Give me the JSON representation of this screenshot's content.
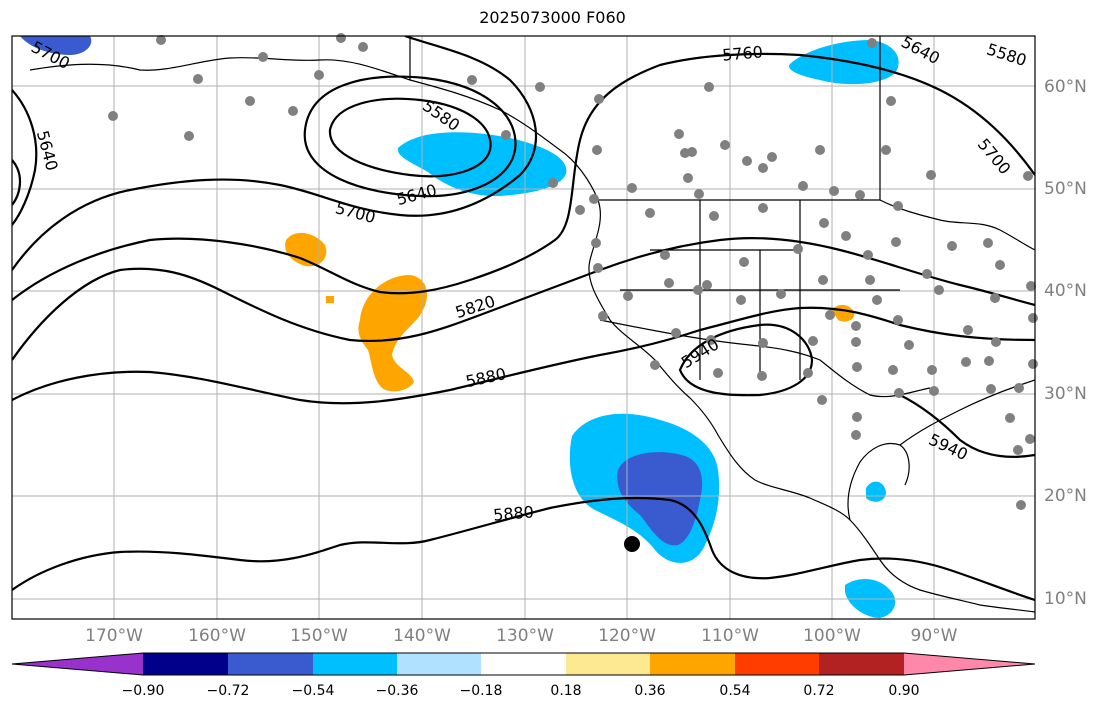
{
  "title": "2025073000 F060",
  "longitude_labels": [
    "170°W",
    "160°W",
    "150°W",
    "140°W",
    "130°W",
    "120°W",
    "110°W",
    "100°W",
    "90°W"
  ],
  "latitude_labels": [
    "60°N",
    "50°N",
    "40°N",
    "30°N",
    "20°N",
    "10°N"
  ],
  "contour_labels": [
    "5700",
    "5640",
    "5580",
    "5640",
    "5700",
    "5760",
    "5580",
    "5640",
    "5700",
    "5820",
    "5880",
    "5940",
    "5940",
    "5880"
  ],
  "colorbar": {
    "tick_labels": [
      "−0.90",
      "−0.72",
      "−0.54",
      "−0.36",
      "−0.18",
      "0.18",
      "0.36",
      "0.54",
      "0.72",
      "0.90"
    ],
    "colors": [
      "#9932cc",
      "#00008b",
      "#3a5bd0",
      "#00bfff",
      "#b0e2ff",
      "#ffffff",
      "#fde992",
      "#ffa500",
      "#ff3d00",
      "#b22222",
      "#ff88aa"
    ]
  },
  "marker_colors": {
    "stations": "#808080",
    "storm": "#000000"
  }
}
